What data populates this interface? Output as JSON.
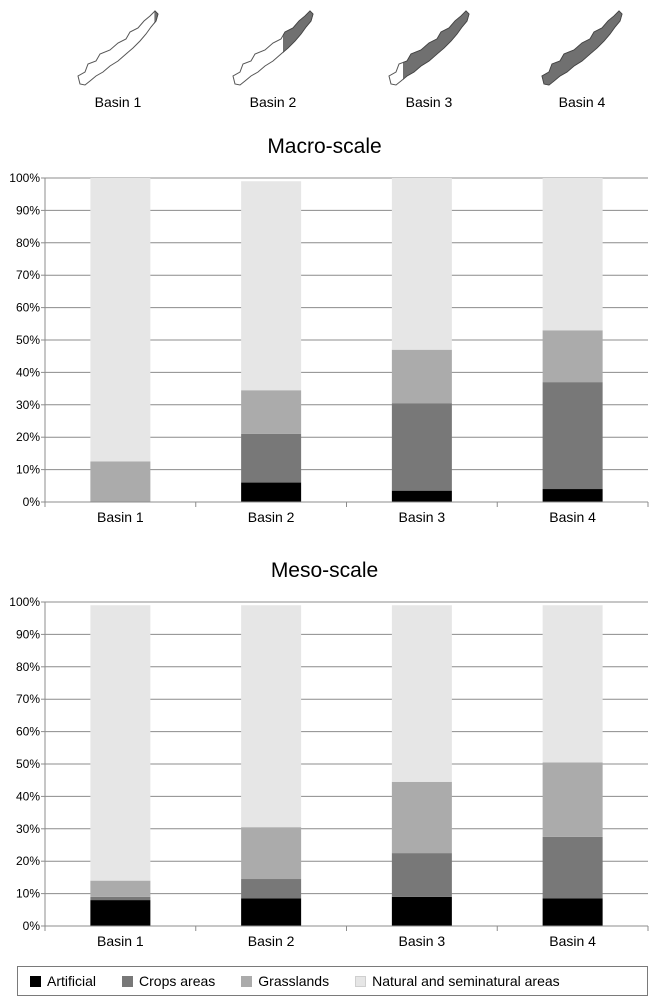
{
  "basins": [
    {
      "label": "Basin 1",
      "fill_level": 0.03
    },
    {
      "label": "Basin 2",
      "fill_level": 0.25
    },
    {
      "label": "Basin 3",
      "fill_level": 0.55
    },
    {
      "label": "Basin 4",
      "fill_level": 0.85
    }
  ],
  "legend": {
    "items": [
      {
        "label": "Artificial",
        "color": "#000000"
      },
      {
        "label": "Crops areas",
        "color": "#787878"
      },
      {
        "label": "Grasslands",
        "color": "#ababab"
      },
      {
        "label": "Natural and seminatural areas",
        "color": "#e6e6e6"
      }
    ]
  },
  "chart_data": [
    {
      "type": "bar",
      "stacked": true,
      "title": "Macro-scale",
      "categories": [
        "Basin 1",
        "Basin 2",
        "Basin 3",
        "Basin 4"
      ],
      "ylim": [
        0,
        100
      ],
      "yticks": [
        "0%",
        "10%",
        "20%",
        "30%",
        "40%",
        "50%",
        "60%",
        "70%",
        "80%",
        "90%",
        "100%"
      ],
      "grid": true,
      "series": [
        {
          "name": "Artificial",
          "color": "#000000",
          "values": [
            0,
            6,
            3.5,
            4
          ]
        },
        {
          "name": "Crops areas",
          "color": "#787878",
          "values": [
            0,
            15,
            27,
            33
          ]
        },
        {
          "name": "Grasslands",
          "color": "#ababab",
          "values": [
            12.5,
            13.5,
            16.5,
            16
          ]
        },
        {
          "name": "Natural and seminatural areas",
          "color": "#e6e6e6",
          "values": [
            87.5,
            64.5,
            53,
            47
          ]
        }
      ]
    },
    {
      "type": "bar",
      "stacked": true,
      "title": "Meso-scale",
      "categories": [
        "Basin 1",
        "Basin 2",
        "Basin 3",
        "Basin 4"
      ],
      "ylim": [
        0,
        100
      ],
      "yticks": [
        "0%",
        "10%",
        "20%",
        "30%",
        "40%",
        "50%",
        "60%",
        "70%",
        "80%",
        "90%",
        "100%"
      ],
      "grid": true,
      "series": [
        {
          "name": "Artificial",
          "color": "#000000",
          "values": [
            8,
            8.5,
            9,
            8.5
          ]
        },
        {
          "name": "Crops areas",
          "color": "#787878",
          "values": [
            1,
            6,
            13.5,
            19
          ]
        },
        {
          "name": "Grasslands",
          "color": "#ababab",
          "values": [
            5,
            16,
            22,
            23
          ]
        },
        {
          "name": "Natural and seminatural areas",
          "color": "#e6e6e6",
          "values": [
            85,
            68.5,
            54.5,
            48.5
          ]
        }
      ]
    }
  ]
}
